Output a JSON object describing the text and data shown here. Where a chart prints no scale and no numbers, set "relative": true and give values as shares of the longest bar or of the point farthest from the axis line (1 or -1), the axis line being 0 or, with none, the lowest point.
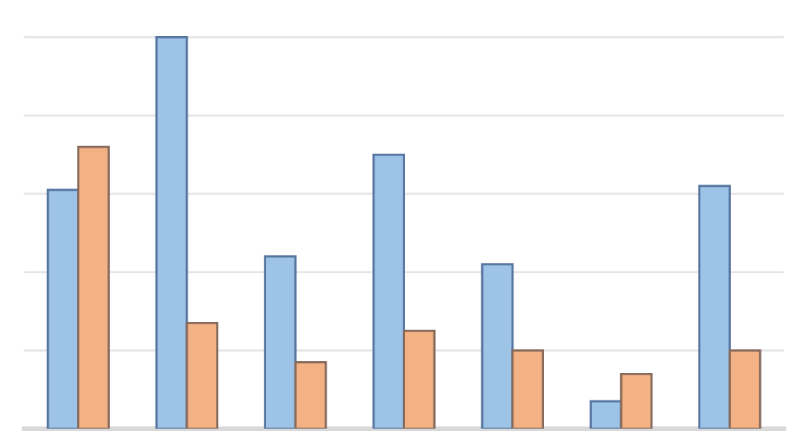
{
  "chart_data": {
    "type": "bar",
    "relative": true,
    "grid": "y",
    "legend": false,
    "categories": [
      null,
      null,
      null,
      null,
      null,
      null,
      null
    ],
    "series": [
      {
        "color": "#9dc3e6",
        "values": [
          0.61,
          1,
          0.44,
          0.7,
          0.42,
          0.07,
          0.62
        ]
      },
      {
        "color": "#f4b183",
        "values": [
          0.72,
          0.27,
          0.17,
          0.25,
          0.2,
          0.14,
          0.2
        ]
      }
    ]
  }
}
